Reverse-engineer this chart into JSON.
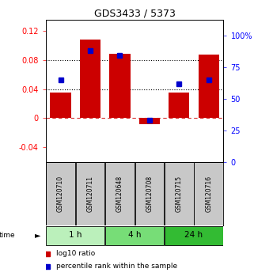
{
  "title": "GDS3433 / 5373",
  "samples": [
    "GSM120710",
    "GSM120711",
    "GSM120648",
    "GSM120708",
    "GSM120715",
    "GSM120716"
  ],
  "log10_ratio": [
    0.035,
    0.108,
    0.088,
    -0.008,
    0.035,
    0.087
  ],
  "percentile_rank": [
    0.65,
    0.88,
    0.84,
    0.33,
    0.62,
    0.65
  ],
  "groups": [
    {
      "label": "1 h",
      "indices": [
        0,
        1
      ],
      "color": "#bbf0bb"
    },
    {
      "label": "4 h",
      "indices": [
        2,
        3
      ],
      "color": "#77dd77"
    },
    {
      "label": "24 h",
      "indices": [
        4,
        5
      ],
      "color": "#33bb33"
    }
  ],
  "bar_color": "#cc0000",
  "dot_color": "#0000cc",
  "ylim_left": [
    -0.06,
    0.135
  ],
  "ylim_right": [
    0.0,
    1.125
  ],
  "yticks_left": [
    -0.04,
    0.0,
    0.04,
    0.08,
    0.12
  ],
  "yticks_right": [
    0.0,
    0.25,
    0.5,
    0.75,
    1.0
  ],
  "ytick_labels_left": [
    "-0.04",
    "0",
    "0.04",
    "0.08",
    "0.12"
  ],
  "ytick_labels_right": [
    "0",
    "25",
    "50",
    "75",
    "100%"
  ],
  "hlines": [
    0.04,
    0.08
  ],
  "zero_line_y": 0,
  "bg_color": "#ffffff",
  "sample_box_color": "#c8c8c8"
}
